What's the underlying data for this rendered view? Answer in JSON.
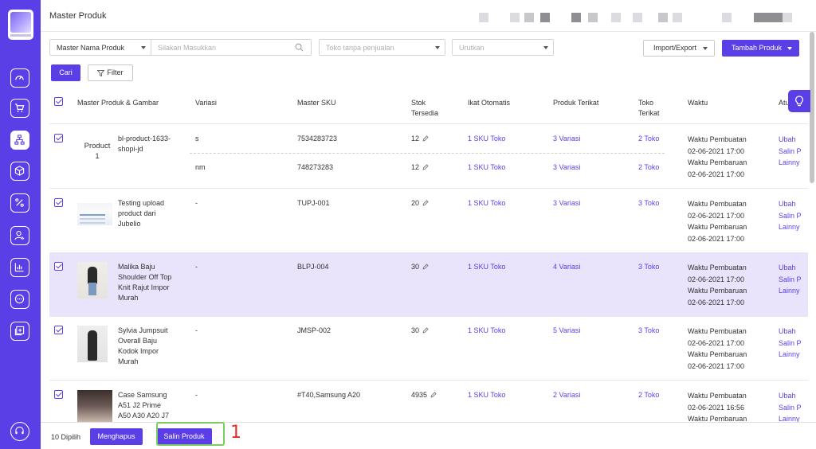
{
  "header": {
    "title": "Master Produk"
  },
  "filters": {
    "field_select": "Master Nama Produk",
    "search_placeholder": "Silakan Masukkan",
    "store_placeholder": "Toko tanpa penjualan",
    "sort_placeholder": "Urutkan",
    "import_export_label": "Import/Export",
    "add_product_label": "Tambah Produk",
    "search_button": "Cari",
    "filter_button": "Filter"
  },
  "table": {
    "columns": [
      "Master Produk & Gambar",
      "Variasi",
      "Master SKU",
      "Stok",
      "Tersedia",
      "Ikat Otomatis",
      "Produk Terikat",
      "Toko",
      "Terikat",
      "Waktu",
      "Atu"
    ],
    "rows": [
      {
        "name": "Product 1",
        "title": "bl-product-1633-shopi-jd",
        "title_lines": [
          "bl-product-1633-",
          "shopi-jd"
        ],
        "variants": [
          {
            "variasi": "s",
            "sku": "7534283723",
            "stok": "12",
            "ikat": "1 SKU Toko",
            "terikat": "3 Variasi",
            "toko": "2 Toko"
          },
          {
            "variasi": "nm",
            "sku": "748273283",
            "stok": "12",
            "ikat": "1 SKU Toko",
            "terikat": "3 Variasi",
            "toko": "2 Toko"
          }
        ],
        "waktu": [
          "Waktu Pembuatan",
          "02-06-2021 17:00",
          "Waktu Pembaruan",
          "02-06-2021 17:00"
        ],
        "actions": [
          "Ubah",
          "Salin P",
          "Lainny"
        ]
      },
      {
        "title_lines": [
          "Testing upload",
          "product dari",
          "Jubelio"
        ],
        "variasi": "-",
        "sku": "TUPJ-001",
        "stok": "20",
        "ikat": "1 SKU Toko",
        "terikat": "3 Variasi",
        "toko": "3 Toko",
        "waktu": [
          "Waktu Pembuatan",
          "02-06-2021 17:00",
          "Waktu Pembaruan",
          "02-06-2021 17:00"
        ],
        "actions": [
          "Ubah",
          "Salin P",
          "Lainny"
        ]
      },
      {
        "title_lines": [
          "Malika Baju",
          "Shoulder Off Top",
          "Knit Rajut Impor",
          "Murah"
        ],
        "variasi": "-",
        "sku": "BLPJ-004",
        "stok": "30",
        "ikat": "1 SKU Toko",
        "terikat": "4 Variasi",
        "toko": "3 Toko",
        "waktu": [
          "Waktu Pembuatan",
          "02-06-2021 17:00",
          "Waktu Pembaruan",
          "02-06-2021 17:00"
        ],
        "actions": [
          "Ubah",
          "Salin P",
          "Lainny"
        ]
      },
      {
        "title_lines": [
          "Sylvia Jumpsuit",
          "Overall Baju",
          "Kodok Impor",
          "Murah"
        ],
        "variasi": "-",
        "sku": "JMSP-002",
        "stok": "30",
        "ikat": "1 SKU Toko",
        "terikat": "5 Variasi",
        "toko": "3 Toko",
        "waktu": [
          "Waktu Pembuatan",
          "02-06-2021 17:00",
          "Waktu Pembaruan",
          "02-06-2021 17:00"
        ],
        "actions": [
          "Ubah",
          "Salin P",
          "Lainny"
        ]
      },
      {
        "title_lines": [
          "Case Samsung",
          "A51 J2 Prime",
          "A50 A30 A20 J7"
        ],
        "variasi": "-",
        "sku": "#T40,Samsung A20",
        "stok": "4935",
        "ikat": "1 SKU Toko",
        "terikat": "2 Variasi",
        "toko": "2 Toko",
        "waktu": [
          "Waktu Pembuatan",
          "02-06-2021 16:56",
          "Waktu Pembaruan"
        ],
        "actions": [
          "Ubah",
          "Salin P",
          "Lainny"
        ]
      }
    ]
  },
  "bottom": {
    "selected_count": "10 Dipilih",
    "delete_label": "Menghapus",
    "copy_label": "Salin Produk",
    "annotation": "1"
  },
  "colors": {
    "accent": "#5b3fe6",
    "highlight_row": "#e9e3fc",
    "annotation_box": "#7ccc60",
    "annotation_text": "#e0302a"
  }
}
